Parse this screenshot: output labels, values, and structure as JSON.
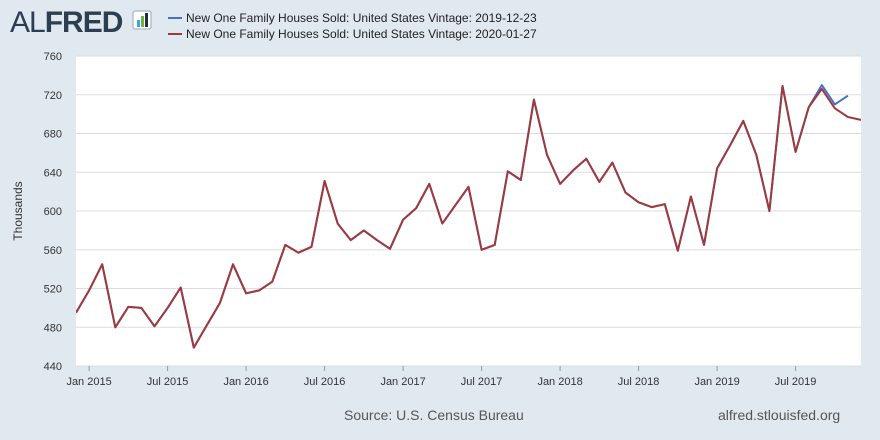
{
  "header": {
    "logo_prefix": "AL",
    "logo_main": "FRED",
    "logo_icon": "chart-bars-icon"
  },
  "footer": {
    "source": "Source: U.S. Census Bureau",
    "site": "alfred.stlouisfed.org"
  },
  "colors": {
    "series_1": "#4472c4",
    "series_2": "#a0393c",
    "plot_bg": "#ffffff",
    "page_bg": "#e1e9f0",
    "grid": "#dddddd"
  },
  "chart_data": {
    "type": "line",
    "title": "",
    "xlabel": "",
    "ylabel": "Thousands",
    "ylim": [
      440,
      760
    ],
    "yticks": [
      440,
      480,
      520,
      560,
      600,
      640,
      680,
      720,
      760
    ],
    "xlim": [
      "2014-12",
      "2019-12"
    ],
    "xticks": [
      {
        "date": "2015-01",
        "label": "Jan 2015"
      },
      {
        "date": "2015-07",
        "label": "Jul 2015"
      },
      {
        "date": "2016-01",
        "label": "Jan 2016"
      },
      {
        "date": "2016-07",
        "label": "Jul 2016"
      },
      {
        "date": "2017-01",
        "label": "Jan 2017"
      },
      {
        "date": "2017-07",
        "label": "Jul 2017"
      },
      {
        "date": "2018-01",
        "label": "Jan 2018"
      },
      {
        "date": "2018-07",
        "label": "Jul 2018"
      },
      {
        "date": "2019-01",
        "label": "Jan 2019"
      },
      {
        "date": "2019-07",
        "label": "Jul 2019"
      }
    ],
    "grid": "horizontal",
    "legend_position": "top",
    "series": [
      {
        "name": "New One Family Houses Sold: United States Vintage: 2019-12-23",
        "color": "#4472c4",
        "x": [
          "2014-12",
          "2015-01",
          "2015-02",
          "2015-03",
          "2015-04",
          "2015-05",
          "2015-06",
          "2015-07",
          "2015-08",
          "2015-09",
          "2015-10",
          "2015-11",
          "2015-12",
          "2016-01",
          "2016-02",
          "2016-03",
          "2016-04",
          "2016-05",
          "2016-06",
          "2016-07",
          "2016-08",
          "2016-09",
          "2016-10",
          "2016-11",
          "2016-12",
          "2017-01",
          "2017-02",
          "2017-03",
          "2017-04",
          "2017-05",
          "2017-06",
          "2017-07",
          "2017-08",
          "2017-09",
          "2017-10",
          "2017-11",
          "2017-12",
          "2018-01",
          "2018-02",
          "2018-03",
          "2018-04",
          "2018-05",
          "2018-06",
          "2018-07",
          "2018-08",
          "2018-09",
          "2018-10",
          "2018-11",
          "2018-12",
          "2019-01",
          "2019-02",
          "2019-03",
          "2019-04",
          "2019-05",
          "2019-06",
          "2019-07",
          "2019-08",
          "2019-09",
          "2019-10",
          "2019-11"
        ],
        "values": [
          495,
          518,
          545,
          480,
          501,
          500,
          481,
          500,
          521,
          459,
          482,
          505,
          545,
          515,
          518,
          527,
          565,
          557,
          563,
          631,
          587,
          570,
          580,
          570,
          561,
          591,
          603,
          628,
          587,
          606,
          625,
          560,
          565,
          641,
          632,
          715,
          658,
          628,
          642,
          654,
          630,
          650,
          619,
          609,
          604,
          607,
          559,
          615,
          565,
          644,
          668,
          693,
          658,
          600,
          729,
          661,
          707,
          730,
          710,
          719
        ],
        "last_date": "2019-11"
      },
      {
        "name": "New One Family Houses Sold: United States Vintage: 2020-01-27",
        "color": "#a0393c",
        "x": [
          "2014-12",
          "2015-01",
          "2015-02",
          "2015-03",
          "2015-04",
          "2015-05",
          "2015-06",
          "2015-07",
          "2015-08",
          "2015-09",
          "2015-10",
          "2015-11",
          "2015-12",
          "2016-01",
          "2016-02",
          "2016-03",
          "2016-04",
          "2016-05",
          "2016-06",
          "2016-07",
          "2016-08",
          "2016-09",
          "2016-10",
          "2016-11",
          "2016-12",
          "2017-01",
          "2017-02",
          "2017-03",
          "2017-04",
          "2017-05",
          "2017-06",
          "2017-07",
          "2017-08",
          "2017-09",
          "2017-10",
          "2017-11",
          "2017-12",
          "2018-01",
          "2018-02",
          "2018-03",
          "2018-04",
          "2018-05",
          "2018-06",
          "2018-07",
          "2018-08",
          "2018-09",
          "2018-10",
          "2018-11",
          "2018-12",
          "2019-01",
          "2019-02",
          "2019-03",
          "2019-04",
          "2019-05",
          "2019-06",
          "2019-07",
          "2019-08",
          "2019-09",
          "2019-10",
          "2019-11",
          "2019-12",
          "2020-01"
        ],
        "values": [
          495,
          518,
          545,
          480,
          501,
          500,
          481,
          500,
          521,
          459,
          482,
          505,
          545,
          515,
          518,
          527,
          565,
          557,
          563,
          631,
          587,
          570,
          580,
          570,
          561,
          591,
          603,
          628,
          587,
          606,
          625,
          560,
          565,
          641,
          632,
          715,
          658,
          628,
          642,
          654,
          630,
          650,
          619,
          609,
          604,
          607,
          559,
          615,
          565,
          644,
          668,
          693,
          658,
          600,
          729,
          661,
          707,
          726,
          706,
          697,
          694,
          692
        ]
      }
    ]
  }
}
